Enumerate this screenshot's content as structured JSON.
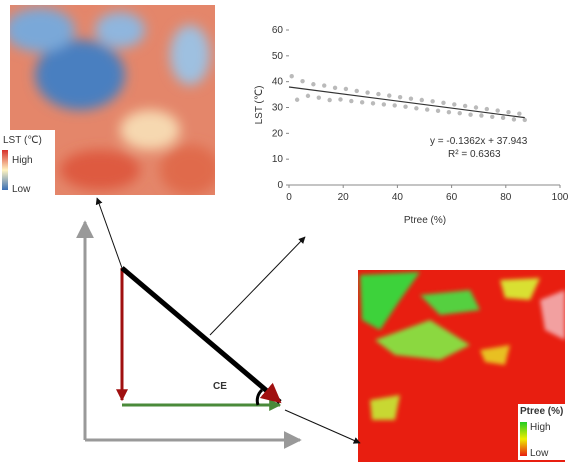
{
  "chart_data": {
    "type": "scatter",
    "xlabel": "Ptree (%)",
    "ylabel": "LST (℃)",
    "xlim": [
      0,
      100
    ],
    "ylim": [
      0,
      60
    ],
    "xticks": [
      0,
      20,
      40,
      60,
      80,
      100
    ],
    "yticks": [
      0,
      10,
      20,
      30,
      40,
      50,
      60
    ],
    "point_color": "#a9a9a9",
    "line_color": "#333333",
    "points": {
      "x": [
        1,
        3,
        5,
        7,
        9,
        11,
        13,
        15,
        17,
        19,
        21,
        23,
        25,
        27,
        29,
        31,
        33,
        35,
        37,
        39,
        41,
        43,
        45,
        47,
        49,
        51,
        53,
        55,
        57,
        59,
        61,
        63,
        65,
        67,
        69,
        71,
        73,
        75,
        77,
        79,
        81,
        83,
        85,
        87
      ],
      "y": [
        42.1,
        33.0,
        40.2,
        34.5,
        39.0,
        33.8,
        38.5,
        32.9,
        37.6,
        33.1,
        37.2,
        32.5,
        36.4,
        32.0,
        35.8,
        31.6,
        35.2,
        31.2,
        34.6,
        30.8,
        34.0,
        30.3,
        33.4,
        29.7,
        32.9,
        29.2,
        32.4,
        28.7,
        31.8,
        28.2,
        31.2,
        27.8,
        30.6,
        27.2,
        30.0,
        26.9,
        29.4,
        26.4,
        28.8,
        26.0,
        28.2,
        25.4,
        27.6,
        25.2
      ]
    },
    "fit": {
      "x": [
        0,
        87
      ],
      "y": [
        37.943,
        26.09
      ]
    },
    "annotations": [
      "y = -0.1362x + 37.943",
      "R² = 0.6363"
    ]
  },
  "maps": {
    "lst": {
      "legend_title": "LST (℃)",
      "high": "High",
      "low": "Low"
    },
    "ptree": {
      "legend_title": "Ptree (%)",
      "high": "High",
      "low": "Low"
    }
  },
  "diagram": {
    "angle_label": "CE"
  }
}
